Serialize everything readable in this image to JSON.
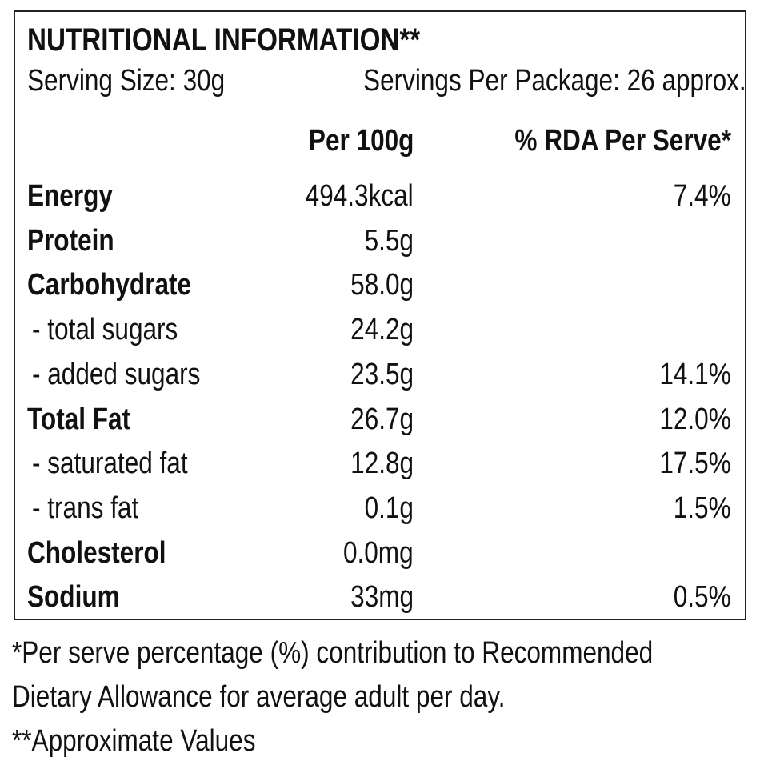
{
  "header": {
    "title": "NUTRITIONAL INFORMATION**",
    "serving_size": "Serving Size: 30g",
    "servings_per_package": "Servings Per Package: 26 approx."
  },
  "table": {
    "columns": [
      "Per 100g",
      "% RDA Per Serve*"
    ],
    "rows": [
      [
        "Energy",
        "494.3kcal",
        "7.4%"
      ],
      [
        "Protein",
        "5.5g",
        null
      ],
      [
        "Carbohydrate",
        "58.0g",
        null
      ],
      [
        "- total sugars",
        "24.2g",
        null
      ],
      [
        "- added sugars",
        "23.5g",
        "14.1%"
      ],
      [
        "Total Fat",
        "26.7g",
        "12.0%"
      ],
      [
        "- saturated fat",
        "12.8g",
        "17.5%"
      ],
      [
        "- trans fat",
        "0.1g",
        "1.5%"
      ],
      [
        "Cholesterol",
        "0.0mg",
        null
      ],
      [
        "Sodium",
        "33mg",
        "0.5%"
      ]
    ]
  },
  "footnotes": [
    "*Per serve percentage (%) contribution to Recommended",
    "Dietary Allowance for average adult per day.",
    "**Approximate Values"
  ]
}
